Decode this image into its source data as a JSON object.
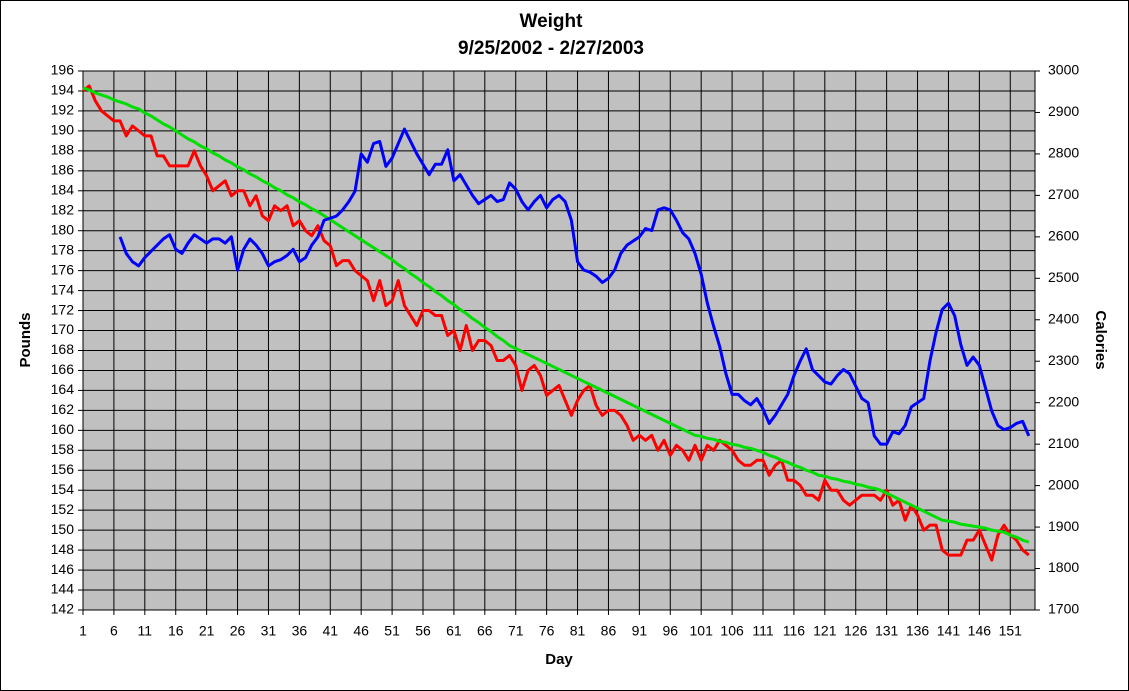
{
  "chart_data": {
    "type": "line",
    "title": "Weight",
    "subtitle": "9/25/2002 - 2/27/2003",
    "x_label": "Day",
    "y_label": "Pounds",
    "y2_label": "Calories",
    "x": [
      1,
      2,
      3,
      4,
      5,
      6,
      7,
      8,
      9,
      10,
      11,
      12,
      13,
      14,
      15,
      16,
      17,
      18,
      19,
      20,
      21,
      22,
      23,
      24,
      25,
      26,
      27,
      28,
      29,
      30,
      31,
      32,
      33,
      34,
      35,
      36,
      37,
      38,
      39,
      40,
      41,
      42,
      43,
      44,
      45,
      46,
      47,
      48,
      49,
      50,
      51,
      52,
      53,
      54,
      55,
      56,
      57,
      58,
      59,
      60,
      61,
      62,
      63,
      64,
      65,
      66,
      67,
      68,
      69,
      70,
      71,
      72,
      73,
      74,
      75,
      76,
      77,
      78,
      79,
      80,
      81,
      82,
      83,
      84,
      85,
      86,
      87,
      88,
      89,
      90,
      91,
      92,
      93,
      94,
      95,
      96,
      97,
      98,
      99,
      100,
      101,
      102,
      103,
      104,
      105,
      106,
      107,
      108,
      109,
      110,
      111,
      112,
      113,
      114,
      115,
      116,
      117,
      118,
      119,
      120,
      121,
      122,
      123,
      124,
      125,
      126,
      127,
      128,
      129,
      130,
      131,
      132,
      133,
      134,
      135,
      136,
      137,
      138,
      139,
      140,
      141,
      142,
      143,
      144,
      145,
      146,
      147,
      148,
      149,
      150,
      151,
      152,
      153,
      154
    ],
    "xlim": [
      1,
      155
    ],
    "xticks": [
      1,
      6,
      11,
      16,
      21,
      26,
      31,
      36,
      41,
      46,
      51,
      56,
      61,
      66,
      71,
      76,
      81,
      86,
      91,
      96,
      101,
      106,
      111,
      116,
      121,
      126,
      131,
      136,
      141,
      146,
      151
    ],
    "ylim": [
      142,
      196
    ],
    "yticks": [
      142,
      144,
      146,
      148,
      150,
      152,
      154,
      156,
      158,
      160,
      162,
      164,
      166,
      168,
      170,
      172,
      174,
      176,
      178,
      180,
      182,
      184,
      186,
      188,
      190,
      192,
      194,
      196
    ],
    "y2lim": [
      1700,
      3000
    ],
    "y2ticks": [
      1700,
      1800,
      1900,
      2000,
      2100,
      2200,
      2300,
      2400,
      2500,
      2600,
      2700,
      2800,
      2900,
      3000
    ],
    "grid": true,
    "series": [
      {
        "color": "#ff0000",
        "values": [
          194,
          194.5,
          193,
          192,
          191.5,
          191,
          191,
          189.5,
          190.5,
          190,
          189.5,
          189.5,
          187.5,
          187.5,
          186.5,
          186.5,
          186.5,
          186.5,
          188,
          186.5,
          185.5,
          184,
          184.5,
          185,
          183.5,
          184,
          184,
          182.5,
          183.5,
          181.5,
          181,
          182.5,
          182,
          182.5,
          180.5,
          181,
          180,
          179.5,
          180.5,
          179,
          178.5,
          176.5,
          177,
          177,
          176,
          175.5,
          175,
          173,
          175,
          172.5,
          173,
          175,
          172.5,
          171.5,
          170.5,
          172,
          172,
          171.5,
          171.5,
          169.5,
          170,
          168,
          170.5,
          168,
          169,
          169,
          168.5,
          167,
          167,
          167.5,
          166.5,
          164,
          166,
          166.5,
          165.5,
          163.5,
          164,
          164.5,
          163,
          161.5,
          163,
          164,
          164.5,
          162.5,
          161.5,
          162,
          162,
          161.5,
          160.5,
          159,
          159.5,
          159,
          159.5,
          158,
          159,
          157.5,
          158.5,
          158,
          157,
          158.5,
          157,
          158.5,
          158,
          159,
          158.5,
          158,
          157,
          156.5,
          156.5,
          157,
          157,
          155.5,
          156.5,
          157,
          155,
          155,
          154.5,
          153.5,
          153.5,
          153,
          155,
          154,
          154,
          153,
          152.5,
          153,
          153.5,
          153.5,
          153.5,
          153,
          154,
          152.5,
          153,
          151,
          152.5,
          151.5,
          150,
          150.5,
          150.5,
          148,
          147.5,
          147.5,
          147.5,
          149,
          149,
          150,
          148.5,
          147,
          149.5,
          150.5,
          149.5,
          149,
          148,
          147.5
        ]
      },
      {
        "color": "#00dd00",
        "values": [
          194.3,
          194.1,
          193.8,
          193.6,
          193.4,
          193.1,
          192.9,
          192.7,
          192.4,
          192.2,
          191.8,
          191.5,
          191.1,
          190.7,
          190.4,
          190.0,
          189.6,
          189.2,
          188.9,
          188.5,
          188.2,
          187.8,
          187.5,
          187.1,
          186.8,
          186.4,
          186.1,
          185.7,
          185.4,
          185.0,
          184.7,
          184.3,
          184.0,
          183.6,
          183.3,
          182.9,
          182.6,
          182.2,
          181.9,
          181.5,
          181.1,
          180.7,
          180.3,
          179.9,
          179.5,
          179.1,
          178.7,
          178.3,
          177.9,
          177.5,
          177.1,
          176.6,
          176.2,
          175.7,
          175.3,
          174.8,
          174.4,
          173.9,
          173.5,
          173.0,
          172.6,
          172.1,
          171.7,
          171.2,
          170.8,
          170.3,
          169.9,
          169.4,
          169.0,
          168.5,
          168.2,
          167.9,
          167.6,
          167.3,
          167.0,
          166.7,
          166.4,
          166.1,
          165.8,
          165.5,
          165.2,
          164.9,
          164.6,
          164.3,
          164.0,
          163.7,
          163.4,
          163.1,
          162.8,
          162.5,
          162.2,
          161.9,
          161.6,
          161.3,
          161.0,
          160.7,
          160.4,
          160.1,
          159.8,
          159.5,
          159.4,
          159.2,
          159.1,
          158.9,
          158.8,
          158.6,
          158.5,
          158.3,
          158.2,
          158.0,
          157.8,
          157.5,
          157.3,
          157.0,
          156.8,
          156.5,
          156.3,
          156.0,
          155.8,
          155.5,
          155.4,
          155.2,
          155.1,
          154.9,
          154.8,
          154.6,
          154.5,
          154.3,
          154.2,
          154.0,
          153.7,
          153.4,
          153.1,
          152.8,
          152.5,
          152.2,
          151.9,
          151.6,
          151.3,
          151.0,
          150.9,
          150.8,
          150.6,
          150.5,
          150.4,
          150.3,
          150.2,
          150.0,
          149.9,
          149.8,
          149.5,
          149.3,
          149.0,
          148.8
        ]
      },
      {
        "color": "#0000ff",
        "axis": "y2",
        "values": [
          null,
          null,
          null,
          null,
          null,
          null,
          2600,
          2560,
          2540,
          2530,
          2550,
          2565,
          2580,
          2595,
          2605,
          2570,
          2560,
          2585,
          2605,
          2595,
          2585,
          2595,
          2595,
          2585,
          2600,
          2520,
          2570,
          2595,
          2580,
          2560,
          2530,
          2540,
          2545,
          2555,
          2570,
          2540,
          2550,
          2580,
          2600,
          2640,
          2645,
          2650,
          2665,
          2685,
          2710,
          2800,
          2780,
          2825,
          2830,
          2770,
          2790,
          2825,
          2860,
          2830,
          2800,
          2775,
          2750,
          2775,
          2775,
          2810,
          2735,
          2750,
          2725,
          2700,
          2680,
          2690,
          2700,
          2685,
          2690,
          2730,
          2715,
          2685,
          2665,
          2685,
          2700,
          2670,
          2690,
          2700,
          2685,
          2640,
          2540,
          2520,
          2515,
          2505,
          2490,
          2500,
          2520,
          2560,
          2580,
          2590,
          2600,
          2620,
          2615,
          2665,
          2670,
          2665,
          2640,
          2610,
          2595,
          2560,
          2510,
          2440,
          2385,
          2335,
          2270,
          2220,
          2220,
          2205,
          2195,
          2210,
          2185,
          2150,
          2170,
          2195,
          2220,
          2265,
          2300,
          2330,
          2280,
          2265,
          2250,
          2245,
          2265,
          2280,
          2270,
          2240,
          2210,
          2200,
          2120,
          2100,
          2100,
          2130,
          2125,
          2145,
          2190,
          2200,
          2210,
          2300,
          2370,
          2425,
          2440,
          2410,
          2340,
          2290,
          2310,
          2290,
          2235,
          2180,
          2145,
          2135,
          2140,
          2150,
          2155,
          2120
        ]
      }
    ]
  }
}
